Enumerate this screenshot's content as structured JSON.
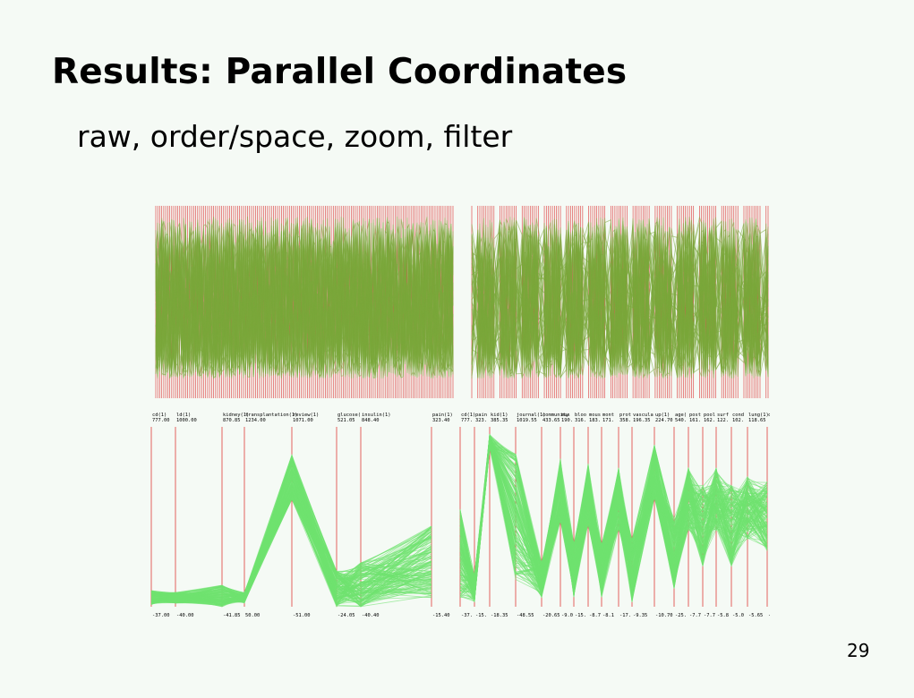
{
  "slide": {
    "title": "Results: Parallel Coordinates",
    "subtitle": "raw, order/space, zoom, filter",
    "page_number": "29"
  },
  "colors": {
    "background": "#f5faf5",
    "axis": "#e05050",
    "polyline_dense": "#7aa83a",
    "polyline_zoom": "#6fe26f"
  },
  "chart_data": [
    {
      "name": "raw-overview",
      "type": "line",
      "axis_count": 150,
      "description_color": "polyline_dense"
    },
    {
      "name": "ordered-spaced-overview",
      "type": "line",
      "axis_count": 120,
      "description_color": "polyline_dense"
    },
    {
      "name": "zoomed-view",
      "type": "line",
      "axes": [
        {
          "name": "cd(1)",
          "max": "777.00",
          "min": "-37.00"
        },
        {
          "name": "ld(1)",
          "max": "1000.00",
          "min": "-40.00"
        },
        {
          "name": "kidney(1)",
          "max": "870.85",
          "min": "-41.85"
        },
        {
          "name": "transplantation(1)",
          "max": "1234.00",
          "min": "50.00"
        },
        {
          "name": "review(1)",
          "max": "1071.00",
          "min": "-51.00"
        },
        {
          "name": "glucose(",
          "max": "521.05",
          "min": "-24.05"
        },
        {
          "name": "insulin(1)",
          "max": "848.40",
          "min": "-40.40"
        },
        {
          "name": "pain(1)",
          "max": "323.40",
          "min": "-15.40"
        }
      ]
    },
    {
      "name": "filtered-view",
      "type": "line",
      "axes": [
        {
          "name": "cd(1)",
          "max": "777.",
          "min": "-37."
        },
        {
          "name": "pain",
          "max": "323.",
          "min": "-15."
        },
        {
          "name": "kid(1)",
          "max": "385.35",
          "min": "-18.35"
        },
        {
          "name": "journal(1)",
          "max": "1019.55",
          "min": "-48.55"
        },
        {
          "name": "community",
          "max": "433.65",
          "min": "-20.65"
        },
        {
          "name": "mus",
          "max": "190.",
          "min": "-9.0"
        },
        {
          "name": "bloo",
          "max": "316.",
          "min": "-15."
        },
        {
          "name": "mous",
          "max": "183.",
          "min": "-8.7"
        },
        {
          "name": "mont",
          "max": "171.",
          "min": "-8.1"
        },
        {
          "name": "prot",
          "max": "358.",
          "min": "-17."
        },
        {
          "name": "vascula",
          "max": "196.35",
          "min": "-9.35"
        },
        {
          "name": "up(1)",
          "max": "224.70",
          "min": "-10.70"
        },
        {
          "name": "age(",
          "max": "540.",
          "min": "-25."
        },
        {
          "name": "post",
          "max": "161.",
          "min": "-7.7"
        },
        {
          "name": "pool",
          "max": "162.",
          "min": "-7.7"
        },
        {
          "name": "surf",
          "max": "122.",
          "min": "-5.8"
        },
        {
          "name": "cond",
          "max": "102.",
          "min": "-5.0"
        },
        {
          "name": "lung(1)",
          "max": "118.65",
          "min": "-5.65"
        },
        {
          "name": "c",
          "max": "",
          "min": "-"
        }
      ]
    }
  ]
}
